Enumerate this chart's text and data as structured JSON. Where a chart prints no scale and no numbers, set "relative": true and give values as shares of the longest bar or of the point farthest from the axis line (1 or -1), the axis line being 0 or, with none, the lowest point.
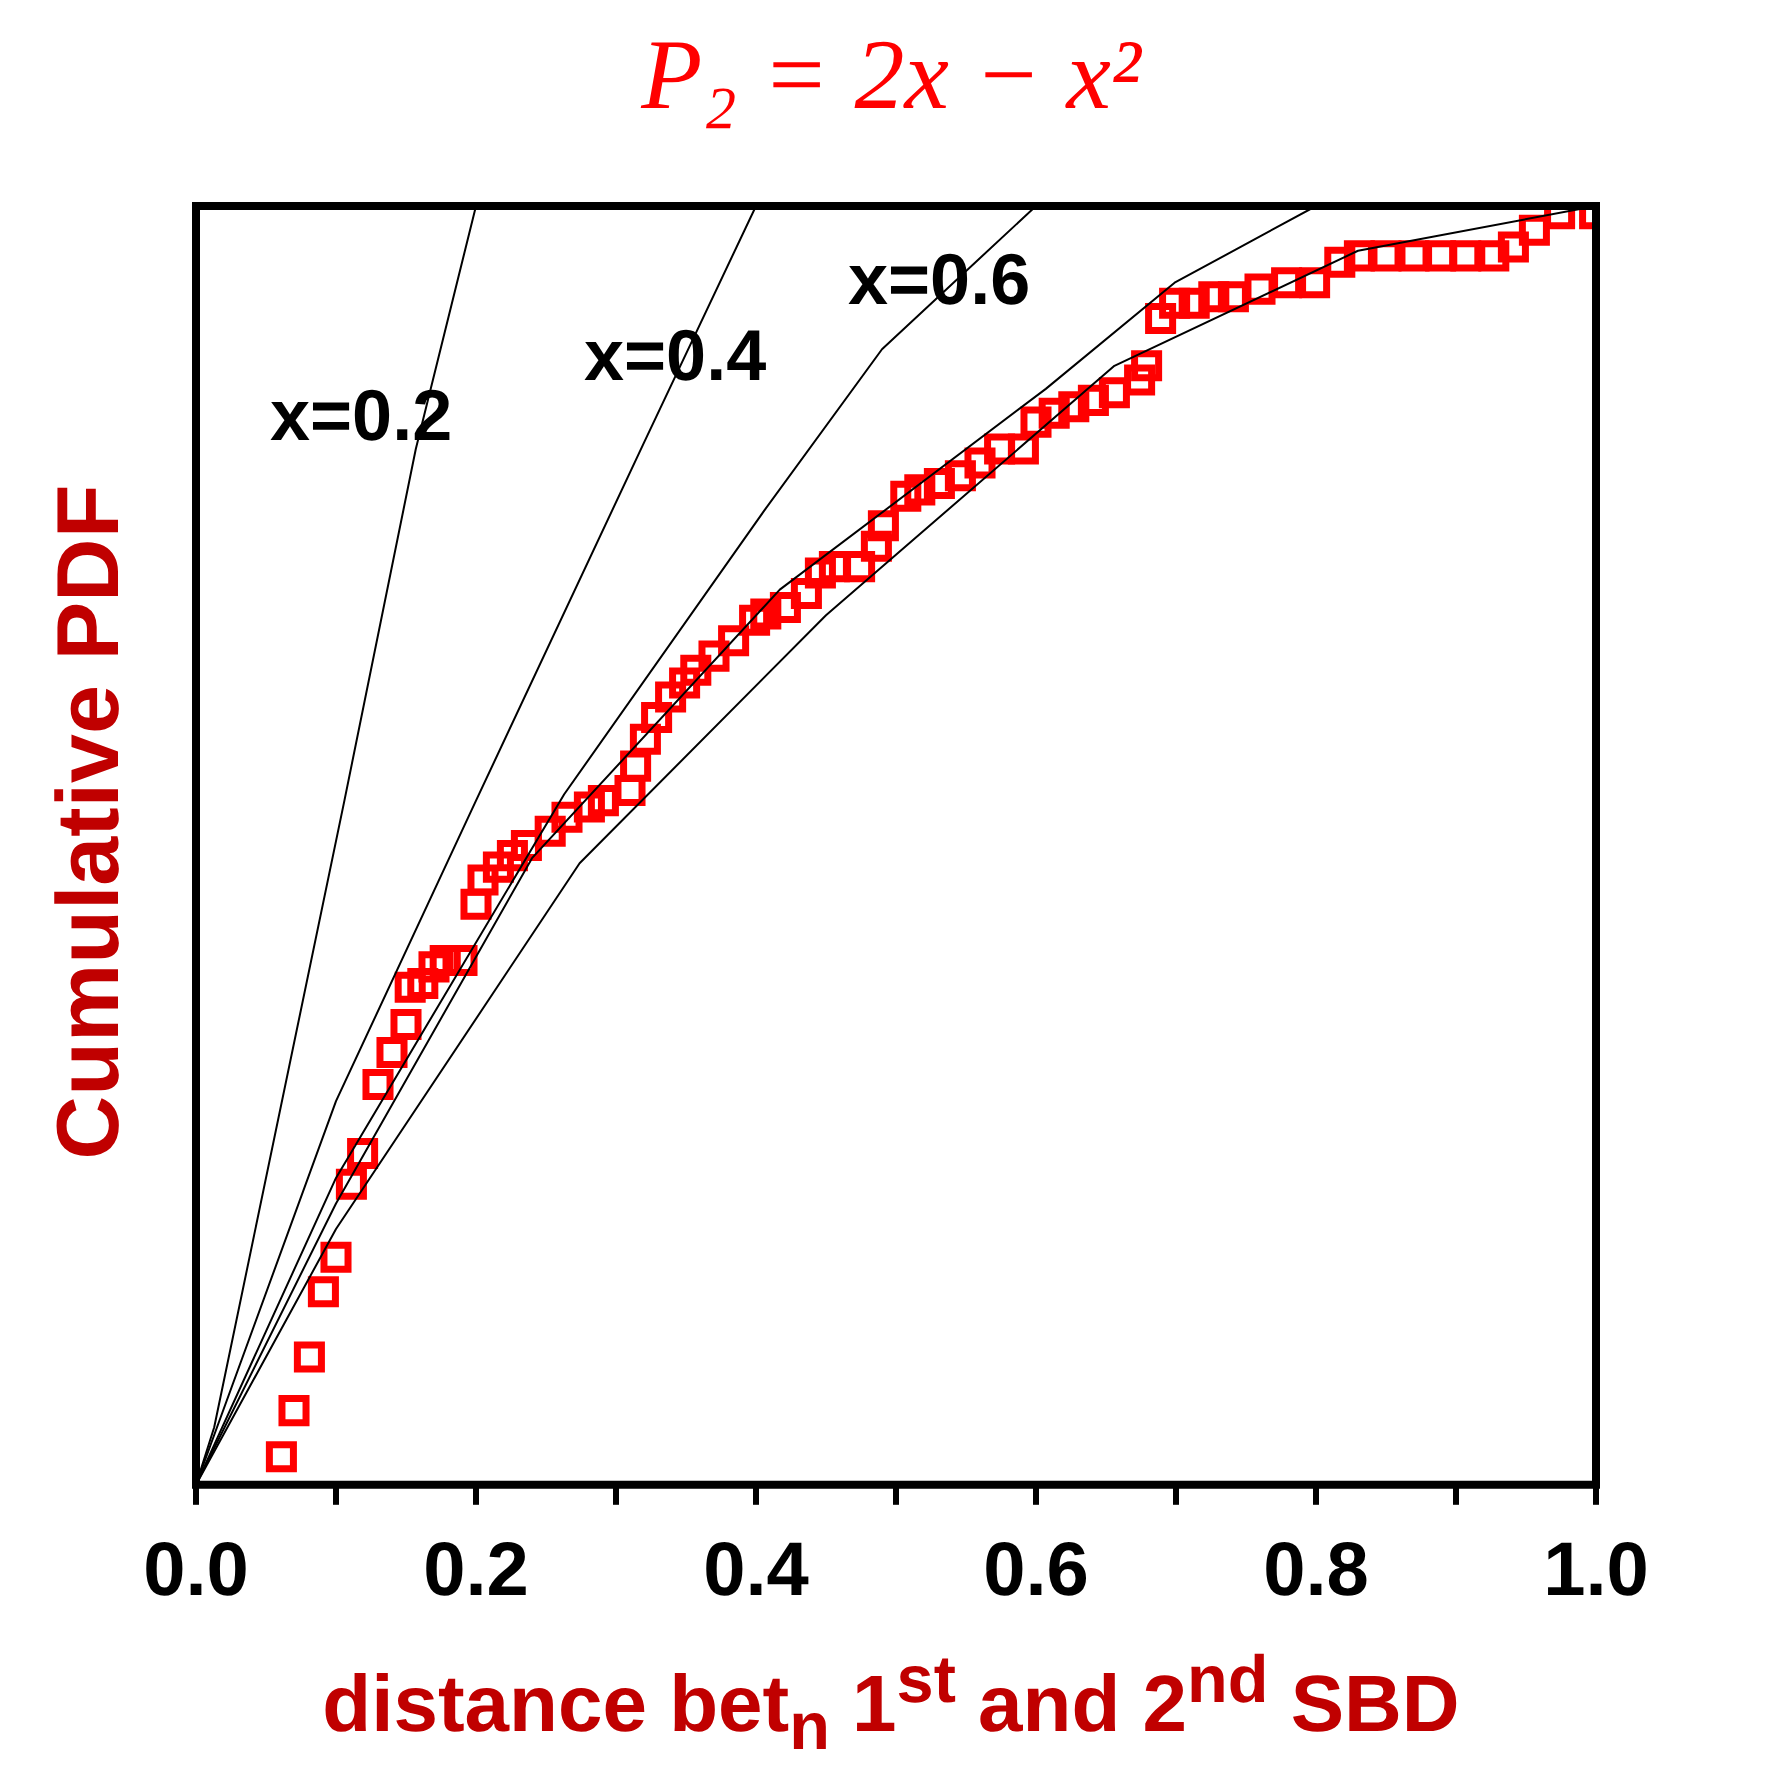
{
  "chart_data": {
    "type": "scatter",
    "title": "P₂ = 2x − x²",
    "xlabel": "distance bet$_{n}$ 1$^{st}$ and 2$^{nd}$ SBD",
    "ylabel": "Cumulative PDF",
    "relative": true,
    "xlim": [
      0,
      1
    ],
    "xticks": [
      {
        "value": 0,
        "label": "0.0"
      },
      {
        "value": 0.1,
        "label": null
      },
      {
        "value": 0.2,
        "label": "0.2"
      },
      {
        "value": 0.3,
        "label": null
      },
      {
        "value": 0.4,
        "label": "0.4"
      },
      {
        "value": 0.5,
        "label": null
      },
      {
        "value": 0.6,
        "label": "0.6"
      },
      {
        "value": 0.7,
        "label": null
      },
      {
        "value": 0.8,
        "label": "0.8"
      },
      {
        "value": 0.9,
        "label": null
      },
      {
        "value": 1,
        "label": "1.0"
      }
    ],
    "grid": false,
    "legend": false,
    "annotations": [
      "x=0.2",
      "x=0.4",
      "x=0.6"
    ],
    "series": [
      {
        "type": "line",
        "color": "#000000",
        "marker": "none",
        "x": [
          0,
          0.013,
          0.106,
          0.157,
          0.2
        ],
        "values": [
          0,
          0.045,
          0.535,
          0.81,
          1
        ]
      },
      {
        "type": "line",
        "color": "#000000",
        "marker": "none",
        "x": [
          0,
          0.1,
          0.2,
          0.32,
          0.4
        ],
        "values": [
          0,
          0.3,
          0.535,
          0.815,
          1
        ]
      },
      {
        "type": "line",
        "color": "#000000",
        "marker": "none",
        "x": [
          0,
          0.1,
          0.263,
          0.406,
          0.49,
          0.6
        ],
        "values": [
          0,
          0.24,
          0.54,
          0.762,
          0.888,
          1
        ]
      },
      {
        "type": "line",
        "color": "#000000",
        "marker": "none",
        "x": [
          0,
          0.1,
          0.24,
          0.417,
          0.607,
          0.699,
          0.8
        ],
        "values": [
          0,
          0.22,
          0.49,
          0.7,
          0.857,
          0.94,
          1
        ]
      },
      {
        "type": "line",
        "color": "#000000",
        "marker": "none",
        "x": [
          0,
          0.1,
          0.274,
          0.45,
          0.656,
          0.83,
          1
        ],
        "values": [
          0,
          0.2,
          0.486,
          0.68,
          0.875,
          0.965,
          1
        ]
      },
      {
        "type": "scatter",
        "color": "#ff0000",
        "marker": "square",
        "x": [
          0.061,
          0.07,
          0.081,
          0.091,
          0.1,
          0.111,
          0.119,
          0.13,
          0.14,
          0.15,
          0.153,
          0.162,
          0.17,
          0.178,
          0.19,
          0.2,
          0.205,
          0.216,
          0.226,
          0.236,
          0.253,
          0.265,
          0.281,
          0.291,
          0.31,
          0.314,
          0.321,
          0.329,
          0.339,
          0.349,
          0.357,
          0.37,
          0.384,
          0.399,
          0.407,
          0.421,
          0.436,
          0.446,
          0.456,
          0.474,
          0.486,
          0.491,
          0.507,
          0.517,
          0.531,
          0.546,
          0.56,
          0.574,
          0.591,
          0.6,
          0.613,
          0.627,
          0.641,
          0.656,
          0.674,
          0.679,
          0.689,
          0.699,
          0.713,
          0.727,
          0.741,
          0.76,
          0.779,
          0.799,
          0.817,
          0.831,
          0.85,
          0.87,
          0.889,
          0.907,
          0.927,
          0.941,
          0.956,
          0.974,
          0.999
        ],
        "values": [
          0.022,
          0.058,
          0.1,
          0.151,
          0.178,
          0.235,
          0.259,
          0.313,
          0.338,
          0.36,
          0.389,
          0.392,
          0.405,
          0.41,
          0.41,
          0.454,
          0.473,
          0.483,
          0.492,
          0.5,
          0.511,
          0.522,
          0.53,
          0.535,
          0.543,
          0.562,
          0.583,
          0.6,
          0.616,
          0.627,
          0.637,
          0.648,
          0.66,
          0.676,
          0.681,
          0.686,
          0.697,
          0.713,
          0.718,
          0.718,
          0.734,
          0.75,
          0.773,
          0.778,
          0.783,
          0.789,
          0.799,
          0.81,
          0.81,
          0.831,
          0.838,
          0.843,
          0.848,
          0.854,
          0.864,
          0.875,
          0.912,
          0.924,
          0.924,
          0.929,
          0.929,
          0.935,
          0.94,
          0.94,
          0.956,
          0.961,
          0.961,
          0.961,
          0.961,
          0.961,
          0.961,
          0.968,
          0.981,
          0.994,
          0.994
        ]
      }
    ]
  }
}
